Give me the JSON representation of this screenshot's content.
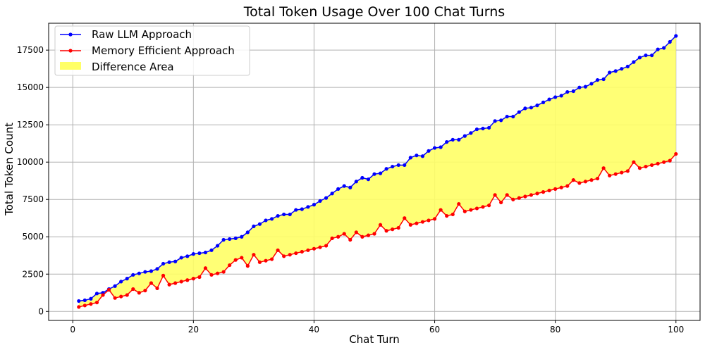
{
  "chart_data": {
    "type": "line",
    "title": "Total Token Usage Over 100 Chat Turns",
    "xlabel": "Chat Turn",
    "ylabel": "Total Token Count",
    "xlim": [
      -4,
      104
    ],
    "ylim": [
      -600,
      19300
    ],
    "xticks": [
      0,
      20,
      40,
      60,
      80,
      100
    ],
    "yticks": [
      0,
      2500,
      5000,
      7500,
      10000,
      12500,
      15000,
      17500
    ],
    "grid": true,
    "legend_position": "top-left",
    "x": [
      1,
      2,
      3,
      4,
      5,
      6,
      7,
      8,
      9,
      10,
      11,
      12,
      13,
      14,
      15,
      16,
      17,
      18,
      19,
      20,
      21,
      22,
      23,
      24,
      25,
      26,
      27,
      28,
      29,
      30,
      31,
      32,
      33,
      34,
      35,
      36,
      37,
      38,
      39,
      40,
      41,
      42,
      43,
      44,
      45,
      46,
      47,
      48,
      49,
      50,
      51,
      52,
      53,
      54,
      55,
      56,
      57,
      58,
      59,
      60,
      61,
      62,
      63,
      64,
      65,
      66,
      67,
      68,
      69,
      70,
      71,
      72,
      73,
      74,
      75,
      76,
      77,
      78,
      79,
      80,
      81,
      82,
      83,
      84,
      85,
      86,
      87,
      88,
      89,
      90,
      91,
      92,
      93,
      94,
      95,
      96,
      97,
      98,
      99,
      100
    ],
    "series": [
      {
        "name": "Raw LLM Approach",
        "color": "#0000ff",
        "values": [
          700,
          750,
          850,
          1200,
          1250,
          1500,
          1700,
          2000,
          2200,
          2450,
          2550,
          2650,
          2700,
          2850,
          3200,
          3300,
          3350,
          3600,
          3700,
          3850,
          3900,
          3950,
          4100,
          4400,
          4800,
          4850,
          4900,
          5000,
          5300,
          5700,
          5850,
          6100,
          6200,
          6400,
          6500,
          6500,
          6800,
          6850,
          7000,
          7150,
          7400,
          7600,
          7900,
          8200,
          8400,
          8300,
          8700,
          8950,
          8850,
          9200,
          9250,
          9550,
          9700,
          9800,
          9800,
          10300,
          10450,
          10400,
          10750,
          10950,
          11000,
          11350,
          11500,
          11500,
          11750,
          11950,
          12200,
          12250,
          12300,
          12750,
          12800,
          13050,
          13050,
          13350,
          13600,
          13650,
          13800,
          14000,
          14200,
          14350,
          14450,
          14700,
          14750,
          15000,
          15050,
          15250,
          15500,
          15550,
          16000,
          16100,
          16250,
          16400,
          16700,
          17000,
          17150,
          17150,
          17550,
          17650,
          18050,
          18450
        ]
      },
      {
        "name": "Memory Efficient Approach",
        "color": "#ff0000",
        "values": [
          300,
          400,
          500,
          600,
          1100,
          1450,
          900,
          1000,
          1100,
          1500,
          1250,
          1400,
          1900,
          1550,
          2400,
          1800,
          1900,
          2000,
          2100,
          2200,
          2300,
          2900,
          2450,
          2550,
          2650,
          3100,
          3450,
          3600,
          3050,
          3800,
          3300,
          3400,
          3500,
          4100,
          3700,
          3800,
          3900,
          4000,
          4100,
          4200,
          4300,
          4400,
          4900,
          5000,
          5200,
          4800,
          5300,
          5000,
          5100,
          5200,
          5800,
          5400,
          5500,
          5600,
          6250,
          5800,
          5900,
          6000,
          6100,
          6200,
          6800,
          6400,
          6500,
          7200,
          6700,
          6800,
          6900,
          7000,
          7100,
          7800,
          7300,
          7800,
          7500,
          7600,
          7700,
          7800,
          7900,
          8000,
          8100,
          8200,
          8300,
          8400,
          8800,
          8600,
          8700,
          8800,
          8900,
          9600,
          9100,
          9200,
          9300,
          9400,
          10000,
          9600,
          9700,
          9800,
          9900,
          10000,
          10100,
          10550
        ]
      }
    ],
    "fill_label": "Difference Area",
    "fill_color": "#ffff66"
  }
}
